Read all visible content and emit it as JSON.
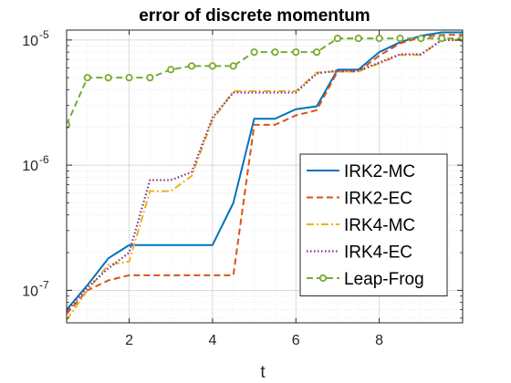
{
  "chart_data": {
    "type": "line",
    "title": "error of discrete momentum",
    "xlabel": "t",
    "ylabel": "",
    "xlim": [
      0.5,
      10
    ],
    "ylim": [
      5.5e-08,
      1.2e-05
    ],
    "yscale": "log",
    "x_ticks": [
      2,
      4,
      6,
      8
    ],
    "x_tick_labels": [
      "2",
      "4",
      "6",
      "8"
    ],
    "y_ticks": [
      1e-07,
      1e-06,
      1e-05
    ],
    "y_tick_labels": [
      {
        "base": "10",
        "exp": "-7"
      },
      {
        "base": "10",
        "exp": "-6"
      },
      {
        "base": "10",
        "exp": "-5"
      }
    ],
    "grid": true,
    "minor_grid": true,
    "legend_position": "bottom-right",
    "series": [
      {
        "name": "IRK2-MC",
        "color": "#0072BD",
        "style": "solid",
        "marker": "none",
        "x": [
          0.5,
          1.0,
          1.5,
          2.0,
          2.5,
          3.0,
          3.5,
          4.0,
          4.5,
          5.0,
          5.5,
          6.0,
          6.5,
          7.0,
          7.5,
          8.0,
          8.5,
          9.0,
          9.5,
          10.0
        ],
        "y": [
          7e-08,
          1.1e-07,
          1.8e-07,
          2.3e-07,
          2.3e-07,
          2.3e-07,
          2.3e-07,
          2.3e-07,
          5e-07,
          2.35e-06,
          2.35e-06,
          2.8e-06,
          2.95e-06,
          5.8e-06,
          5.8e-06,
          8e-06,
          9.6e-06,
          1.08e-05,
          1.15e-05,
          1.15e-05
        ]
      },
      {
        "name": "IRK2-EC",
        "color": "#D95319",
        "style": "dashed",
        "marker": "none",
        "x": [
          0.5,
          1.0,
          1.5,
          2.0,
          2.5,
          3.0,
          3.5,
          4.0,
          4.5,
          5.0,
          5.5,
          6.0,
          6.5,
          7.0,
          7.5,
          8.0,
          8.5,
          9.0,
          9.5,
          10.0
        ],
        "y": [
          6.5e-08,
          1e-07,
          1.2e-07,
          1.32e-07,
          1.32e-07,
          1.32e-07,
          1.32e-07,
          1.32e-07,
          1.32e-07,
          2.1e-06,
          2.1e-06,
          2.5e-06,
          2.75e-06,
          5.6e-06,
          5.6e-06,
          7.5e-06,
          9.4e-06,
          1.05e-05,
          1.1e-05,
          1.1e-05
        ]
      },
      {
        "name": "IRK4-MC",
        "color": "#EDB120",
        "style": "dashdot",
        "marker": "none",
        "x": [
          0.5,
          1.0,
          1.5,
          2.0,
          2.5,
          3.0,
          3.5,
          4.0,
          4.5,
          5.0,
          5.5,
          6.0,
          6.5,
          7.0,
          7.5,
          8.0,
          8.5,
          9.0,
          9.5,
          10.0
        ],
        "y": [
          5.8e-08,
          1e-07,
          1.6e-07,
          1.7e-07,
          6.2e-07,
          6.2e-07,
          8.2e-07,
          2.3e-06,
          3.9e-06,
          3.9e-06,
          3.9e-06,
          3.9e-06,
          5.5e-06,
          5.6e-06,
          5.6e-06,
          6.5e-06,
          7.6e-06,
          7.6e-06,
          1e-05,
          1e-05
        ]
      },
      {
        "name": "IRK4-EC",
        "color": "#7E2F8E",
        "style": "dotted",
        "marker": "none",
        "x": [
          0.5,
          1.0,
          1.5,
          2.0,
          2.5,
          3.0,
          3.5,
          4.0,
          4.5,
          5.0,
          5.5,
          6.0,
          6.5,
          7.0,
          7.5,
          8.0,
          8.5,
          9.0,
          9.5,
          10.0
        ],
        "y": [
          6.8e-08,
          1.05e-07,
          1.5e-07,
          2e-07,
          7.6e-07,
          7.6e-07,
          8.8e-07,
          2.4e-06,
          3.8e-06,
          3.8e-06,
          3.8e-06,
          3.8e-06,
          5.4e-06,
          5.7e-06,
          5.7e-06,
          6.6e-06,
          7.7e-06,
          7.7e-06,
          1e-05,
          1e-05
        ]
      },
      {
        "name": "Leap-Frog",
        "color": "#77AC30",
        "style": "dashed",
        "marker": "circle",
        "x": [
          0.5,
          1.0,
          1.5,
          2.0,
          2.5,
          3.0,
          3.5,
          4.0,
          4.5,
          5.0,
          5.5,
          6.0,
          6.5,
          7.0,
          7.5,
          8.0,
          8.5,
          9.0,
          9.5,
          10.0
        ],
        "y": [
          2.1e-06,
          5e-06,
          5e-06,
          5e-06,
          5e-06,
          5.8e-06,
          6.2e-06,
          6.2e-06,
          6.2e-06,
          8e-06,
          8e-06,
          8e-06,
          8e-06,
          1.03e-05,
          1.03e-05,
          1.03e-05,
          1.03e-05,
          1.03e-05,
          1.03e-05,
          1.03e-05
        ]
      }
    ]
  }
}
